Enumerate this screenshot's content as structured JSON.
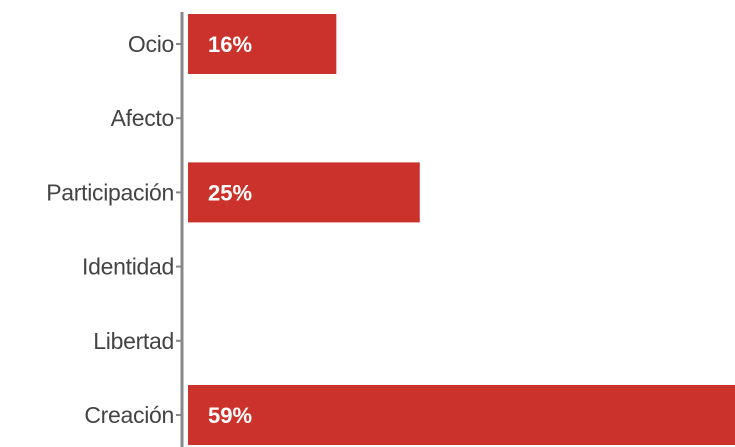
{
  "chart_data": {
    "type": "bar",
    "orientation": "horizontal",
    "categories": [
      "Ocio",
      "Afecto",
      "Participación",
      "Identidad",
      "Libertad",
      "Creación"
    ],
    "values": [
      16,
      0,
      25,
      0,
      0,
      59
    ],
    "value_labels": [
      "16%",
      "",
      "25%",
      "",
      "",
      "59%"
    ],
    "title": "",
    "xlabel": "",
    "ylabel": "",
    "xlim": [
      0,
      59
    ],
    "grid": false,
    "legend": "none",
    "colors": {
      "bar": "#cc322c",
      "axis": "#888888",
      "label": "#444444",
      "value_text": "#ffffff"
    }
  }
}
